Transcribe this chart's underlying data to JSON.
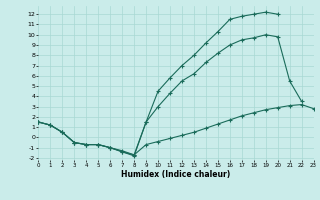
{
  "bg_color": "#caecea",
  "grid_color": "#a8d8d4",
  "line_color": "#1a6b5a",
  "xlim": [
    0,
    23
  ],
  "ylim": [
    -2.2,
    12.8
  ],
  "xticks": [
    0,
    1,
    2,
    3,
    4,
    5,
    6,
    7,
    8,
    9,
    10,
    11,
    12,
    13,
    14,
    15,
    16,
    17,
    18,
    19,
    20,
    21,
    22,
    23
  ],
  "yticks": [
    -2,
    -1,
    0,
    1,
    2,
    3,
    4,
    5,
    6,
    7,
    8,
    9,
    10,
    11,
    12
  ],
  "xlabel": "Humidex (Indice chaleur)",
  "line_upper_x": [
    0,
    1,
    2,
    3,
    4,
    5,
    6,
    7,
    8,
    9,
    10,
    11,
    12,
    13,
    14,
    15,
    16,
    17,
    18,
    19,
    20
  ],
  "line_upper_y": [
    1.5,
    1.2,
    0.5,
    -0.5,
    -0.7,
    -0.7,
    -1.0,
    -1.4,
    -1.7,
    1.5,
    4.5,
    5.8,
    7.0,
    8.0,
    9.2,
    10.3,
    11.5,
    11.8,
    12.0,
    12.2,
    12.0
  ],
  "line_mid_x": [
    0,
    1,
    2,
    3,
    4,
    5,
    6,
    7,
    8,
    9,
    10,
    11,
    12,
    13,
    14,
    15,
    16,
    17,
    18,
    19,
    20,
    21,
    22
  ],
  "line_mid_y": [
    1.5,
    1.2,
    0.5,
    -0.5,
    -0.7,
    -0.7,
    -1.0,
    -1.4,
    -1.8,
    1.5,
    3.0,
    4.3,
    5.5,
    6.2,
    7.3,
    8.2,
    9.0,
    9.5,
    9.7,
    10.0,
    9.8,
    5.5,
    3.5
  ],
  "line_low_x": [
    0,
    1,
    2,
    3,
    4,
    5,
    6,
    7,
    8,
    9,
    10,
    11,
    12,
    13,
    14,
    15,
    16,
    17,
    18,
    19,
    20,
    21,
    22,
    23
  ],
  "line_low_y": [
    1.5,
    1.2,
    0.5,
    -0.5,
    -0.7,
    -0.7,
    -1.0,
    -1.3,
    -1.7,
    -0.7,
    -0.4,
    -0.1,
    0.2,
    0.5,
    0.9,
    1.3,
    1.7,
    2.1,
    2.4,
    2.7,
    2.9,
    3.1,
    3.2,
    2.8
  ]
}
